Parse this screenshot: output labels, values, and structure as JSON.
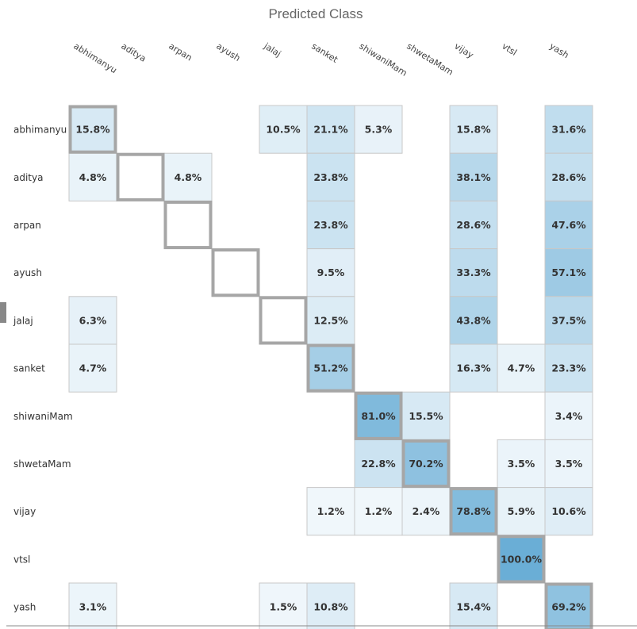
{
  "chart_data": {
    "type": "heatmap",
    "title": "Predicted Class",
    "columns": [
      "abhimanyu",
      "aditya",
      "arpan",
      "ayush",
      "jalaj",
      "sanket",
      "shiwaniMam",
      "shwetaMam",
      "vijay",
      "vtsl",
      "yash"
    ],
    "rows": [
      "abhimanyu",
      "aditya",
      "arpan",
      "ayush",
      "jalaj",
      "sanket",
      "shiwaniMam",
      "shwetaMam",
      "vijay",
      "vtsl",
      "yash"
    ],
    "values": [
      [
        15.8,
        null,
        null,
        null,
        10.5,
        21.1,
        5.3,
        null,
        15.8,
        null,
        31.6
      ],
      [
        4.8,
        null,
        4.8,
        null,
        null,
        23.8,
        null,
        null,
        38.1,
        null,
        28.6
      ],
      [
        null,
        null,
        null,
        null,
        null,
        23.8,
        null,
        null,
        28.6,
        null,
        47.6
      ],
      [
        null,
        null,
        null,
        null,
        null,
        9.5,
        null,
        null,
        33.3,
        null,
        57.1
      ],
      [
        6.3,
        null,
        null,
        null,
        null,
        12.5,
        null,
        null,
        43.8,
        null,
        37.5
      ],
      [
        4.7,
        null,
        null,
        null,
        null,
        51.2,
        null,
        null,
        16.3,
        4.7,
        23.3
      ],
      [
        null,
        null,
        null,
        null,
        null,
        null,
        81.0,
        15.5,
        null,
        null,
        3.4
      ],
      [
        null,
        null,
        null,
        null,
        null,
        null,
        22.8,
        70.2,
        null,
        3.5,
        3.5
      ],
      [
        null,
        null,
        null,
        null,
        null,
        1.2,
        1.2,
        2.4,
        78.8,
        5.9,
        10.6
      ],
      [
        null,
        null,
        null,
        null,
        null,
        null,
        null,
        null,
        null,
        100.0,
        null
      ],
      [
        3.1,
        null,
        null,
        null,
        1.5,
        10.8,
        null,
        null,
        15.4,
        null,
        69.2
      ]
    ],
    "cell_labels": [
      [
        "15.8%",
        null,
        null,
        null,
        "10.5%",
        "21.1%",
        "5.3%",
        null,
        "15.8%",
        null,
        "31.6%"
      ],
      [
        "4.8%",
        null,
        "4.8%",
        null,
        null,
        "23.8%",
        null,
        null,
        "38.1%",
        null,
        "28.6%"
      ],
      [
        null,
        null,
        null,
        null,
        null,
        "23.8%",
        null,
        null,
        "28.6%",
        null,
        "47.6%"
      ],
      [
        null,
        null,
        null,
        null,
        null,
        "9.5%",
        null,
        null,
        "33.3%",
        null,
        "57.1%"
      ],
      [
        "6.3%",
        null,
        null,
        null,
        null,
        "12.5%",
        null,
        null,
        "43.8%",
        null,
        "37.5%"
      ],
      [
        "4.7%",
        null,
        null,
        null,
        null,
        "51.2%",
        null,
        null,
        "16.3%",
        "4.7%",
        "23.3%"
      ],
      [
        null,
        null,
        null,
        null,
        null,
        null,
        "81.0%",
        "15.5%",
        null,
        null,
        "3.4%"
      ],
      [
        null,
        null,
        null,
        null,
        null,
        null,
        "22.8%",
        "70.2%",
        null,
        "3.5%",
        "3.5%"
      ],
      [
        null,
        null,
        null,
        null,
        null,
        "1.2%",
        "1.2%",
        "2.4%",
        "78.8%",
        "5.9%",
        "10.6%"
      ],
      [
        null,
        null,
        null,
        null,
        null,
        null,
        null,
        null,
        null,
        "100.0%",
        null
      ],
      [
        "3.1%",
        null,
        null,
        null,
        "1.5%",
        "10.8%",
        null,
        null,
        "15.4%",
        null,
        "69.2%"
      ]
    ],
    "color_range": [
      "#ffffff",
      "#6aaed6"
    ],
    "cell_border_color": "#c8c8c8",
    "diagonal_highlight_color": "#a6a6a6"
  }
}
